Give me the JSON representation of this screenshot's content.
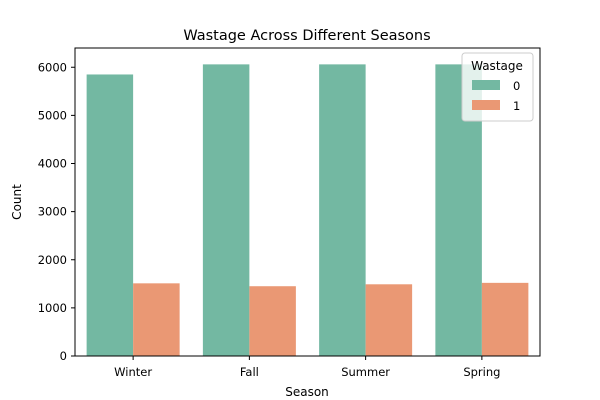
{
  "chart_data": {
    "type": "bar",
    "title": "Wastage Across Different Seasons",
    "xlabel": "Season",
    "ylabel": "Count",
    "categories": [
      "Winter",
      "Fall",
      "Summer",
      "Spring"
    ],
    "series": [
      {
        "name": "0",
        "values": [
          5850,
          6060,
          6060,
          6060
        ],
        "color": "#73b8a2"
      },
      {
        "name": "1",
        "values": [
          1510,
          1450,
          1490,
          1520
        ],
        "color": "#ea9874"
      }
    ],
    "ylim": [
      0,
      6400
    ],
    "yticks": [
      0,
      1000,
      2000,
      3000,
      4000,
      5000,
      6000
    ],
    "grid": false,
    "legend": {
      "title": "Wastage",
      "placement": "top-right"
    }
  }
}
